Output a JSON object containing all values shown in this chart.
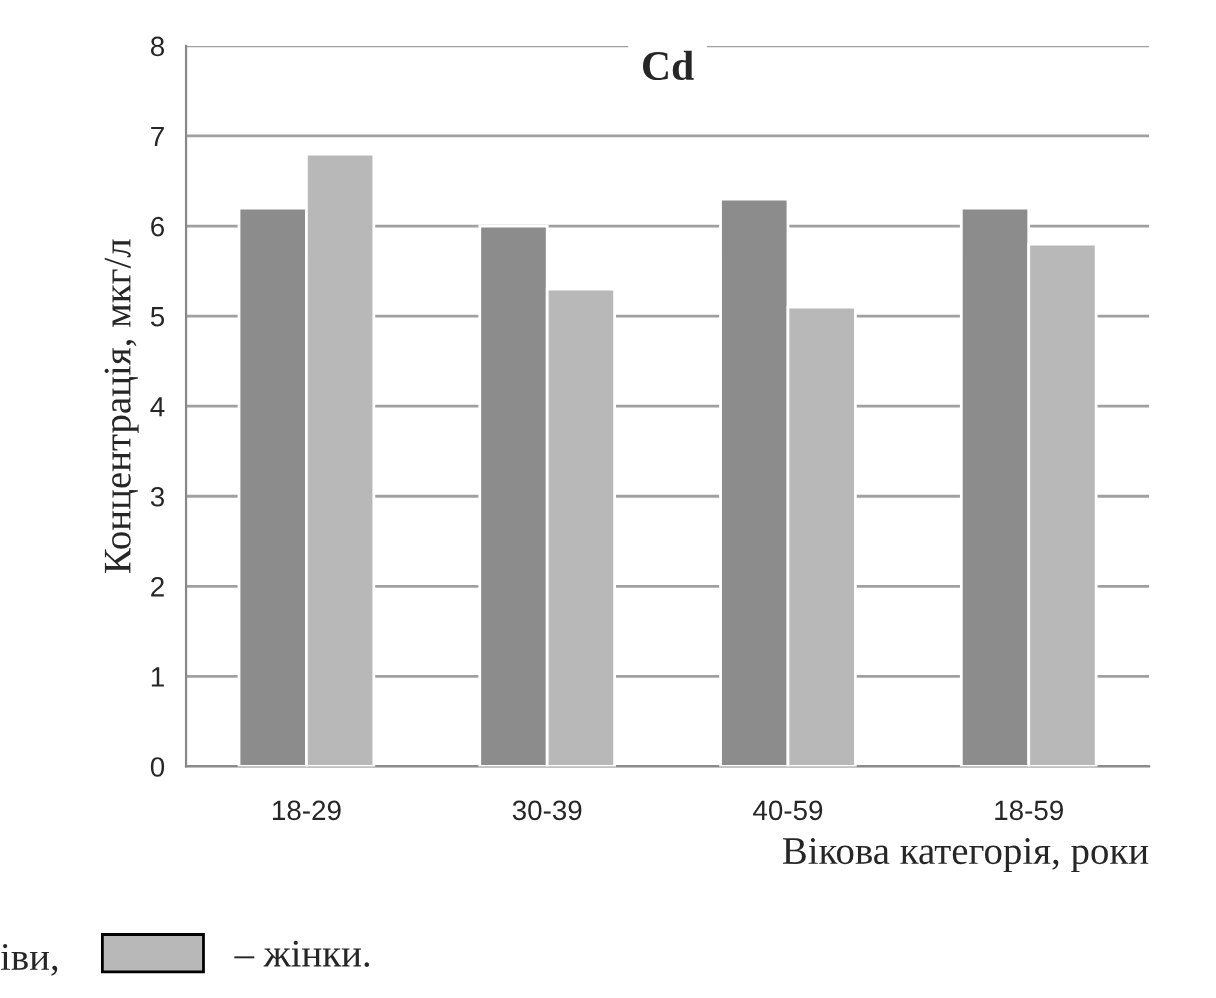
{
  "chart_data": {
    "type": "bar",
    "title": "Cd",
    "xlabel": "Вікова категорія, роки",
    "ylabel": "Концентрація, мкг/л",
    "categories": [
      "18-29",
      "30-39",
      "40-59",
      "18-59"
    ],
    "series": [
      {
        "color": "#8c8c8c",
        "values": [
          6.2,
          6.0,
          6.3,
          6.2
        ]
      },
      {
        "name": "– жінки.",
        "color": "#b8b8b8",
        "values": [
          6.8,
          5.3,
          5.1,
          5.8
        ]
      }
    ],
    "ylim": [
      0,
      8
    ],
    "yticks": [
      0,
      1,
      2,
      3,
      4,
      5,
      6,
      7,
      8
    ],
    "grid": "y",
    "legend": "bottom left",
    "annotations": [
      "іви,"
    ]
  }
}
